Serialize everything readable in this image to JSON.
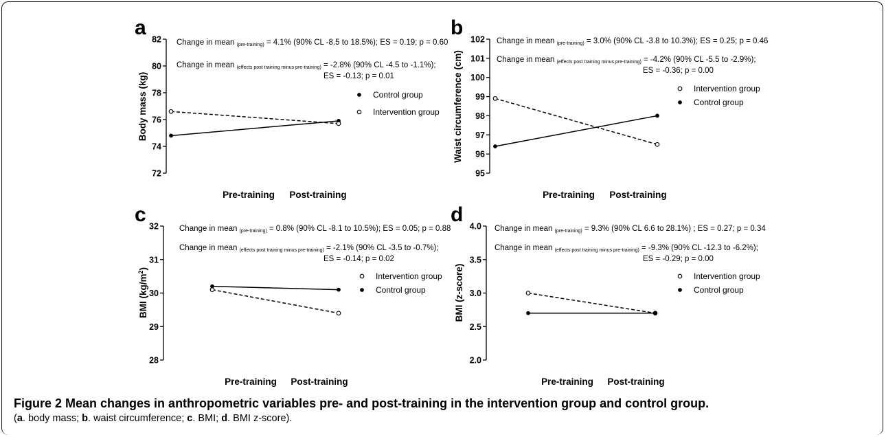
{
  "chart_data": [
    {
      "panel": "a",
      "type": "line",
      "categories": [
        "Pre-training",
        "Post-training"
      ],
      "ylabel": "Body mass (kg)",
      "ylim": [
        72,
        82
      ],
      "yticks": [
        "72",
        "74",
        "76",
        "78",
        "80",
        "82"
      ],
      "series": [
        {
          "name": "Control group",
          "marker": "filled",
          "dash": false,
          "values": [
            74.8,
            75.9
          ]
        },
        {
          "name": "Intervention group",
          "marker": "open",
          "dash": true,
          "values": [
            76.6,
            75.7
          ]
        }
      ],
      "annotation1": {
        "pre": "Change in mean ",
        "sub": "(pre-training)",
        "post": " = 4.1% (90% CL -8.5 to 18.5%); ES = 0.19; p = 0.60"
      },
      "annotation2": {
        "pre": "Change in mean ",
        "sub": "(effects post training minus pre-training)",
        "post": " = -2.8% (90% CL -4.5 to -1.1%);"
      },
      "annotation3": "ES = -0.13; p = 0.01",
      "legend": [
        "Control group",
        "Intervention group"
      ]
    },
    {
      "panel": "b",
      "type": "line",
      "categories": [
        "Pre-training",
        "Post-training"
      ],
      "ylabel": "Waist circumference (cm)",
      "ylim": [
        95,
        102
      ],
      "yticks": [
        "95",
        "96",
        "97",
        "98",
        "99",
        "100",
        "101",
        "102"
      ],
      "series": [
        {
          "name": "Intervention group",
          "marker": "open",
          "dash": true,
          "values": [
            98.9,
            96.5
          ]
        },
        {
          "name": "Control group",
          "marker": "filled",
          "dash": false,
          "values": [
            96.4,
            98.0
          ]
        }
      ],
      "annotation1": {
        "pre": "Change in mean ",
        "sub": "(pre-training)",
        "post": " = 3.0% (90% CL -3.8 to 10.3%); ES = 0.25; p = 0.46"
      },
      "annotation2": {
        "pre": "Change in mean ",
        "sub": "(effects post training minus pre-training)",
        "post": " = -4.2% (90% CL -5.5 to -2.9%);"
      },
      "annotation3": "ES = -0.36; p = 0.00",
      "legend": [
        "Intervention group",
        "Control group"
      ]
    },
    {
      "panel": "c",
      "type": "line",
      "categories": [
        "Pre-training",
        "Post-training"
      ],
      "ylabel": "BMI (kg/m",
      "ylabel_sup": "2",
      "ylabel_end": ")",
      "ylim": [
        28,
        32
      ],
      "yticks": [
        "28",
        "29",
        "30",
        "31",
        "32"
      ],
      "series": [
        {
          "name": "Intervention group",
          "marker": "open",
          "dash": true,
          "values": [
            30.1,
            29.4
          ]
        },
        {
          "name": "Control group",
          "marker": "filled",
          "dash": false,
          "values": [
            30.2,
            30.1
          ]
        }
      ],
      "annotation1": {
        "pre": "Change in mean ",
        "sub": "(pre-training)",
        "post": " = 0.8% (90% CL -8.1 to 10.5%); ES = 0.05; p = 0.88"
      },
      "annotation2": {
        "pre": "Change in mean ",
        "sub": "(effects post training minus pre-training)",
        "post": " = -2.1% (90% CL -3.5 to -0.7%);"
      },
      "annotation3": "ES = -0.14; p = 0.02",
      "legend": [
        "Intervention group",
        "Control group"
      ]
    },
    {
      "panel": "d",
      "type": "line",
      "categories": [
        "Pre-training",
        "Post-training"
      ],
      "ylabel": "BMI (z-score)",
      "ylim": [
        2.0,
        4.0
      ],
      "yticks": [
        "2.0",
        "2.5",
        "3.0",
        "3.5",
        "4.0"
      ],
      "series": [
        {
          "name": "Intervention group",
          "marker": "open",
          "dash": true,
          "values": [
            3.0,
            2.7
          ]
        },
        {
          "name": "Control group",
          "marker": "filled",
          "dash": false,
          "values": [
            2.7,
            2.7
          ]
        }
      ],
      "annotation1": {
        "pre": "Change in mean ",
        "sub": "(pre-training)",
        "post": " = 9.3% (90% CL 6.6 to 28.1%) ; ES = 0.27; p = 0.34"
      },
      "annotation2": {
        "pre": "Change in mean ",
        "sub": "(effects post training minus pre-training)",
        "post": " = -9.3% (90% CL -12.3 to -6.2%);"
      },
      "annotation3": "ES = -0.29; p = 0.00",
      "legend": [
        "Intervention group",
        "Control group"
      ]
    }
  ],
  "caption": {
    "title": "Figure 2 Mean changes in anthropometric variables pre- and post-training in the intervention group and control group.",
    "p0": "(",
    "a": "a",
    "t1": ". body mass; ",
    "b": "b",
    "t2": ". waist circumference; ",
    "c": "c",
    "t3": ". BMI; ",
    "d": "d",
    "t4": ". BMI z-score)."
  }
}
